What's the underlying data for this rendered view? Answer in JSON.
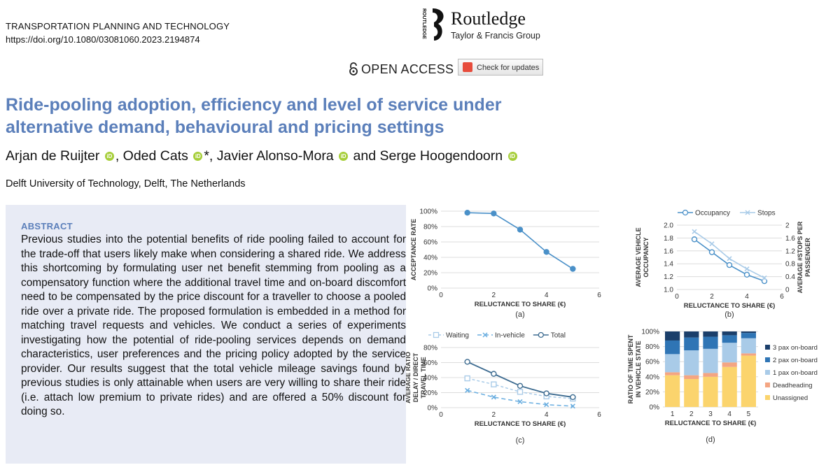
{
  "journal": {
    "name": "TRANSPORTATION PLANNING AND TECHNOLOGY",
    "doi": "https://doi.org/10.1080/03081060.2023.2194874"
  },
  "publisher": {
    "name": "Routledge",
    "group": "Taylor & Francis Group",
    "side_text": "ROUTLEDGE"
  },
  "open_access": "OPEN ACCESS",
  "check_updates": "Check for updates",
  "paper": {
    "title": "Ride-pooling adoption, efficiency and level of service under alternative demand, behavioural and pricing settings",
    "authors": [
      "Arjan de Ruijter",
      "Oded Cats",
      "Javier Alonso-Mora",
      "Serge Hoogendoorn"
    ],
    "orcid_label": "iD",
    "corresponding_mark": "*",
    "sep_comma": ",",
    "sep_and": "and",
    "affiliation": "Delft University of Technology, Delft, The Netherlands"
  },
  "abstract": {
    "heading": "ABSTRACT",
    "text": "Previous studies into the potential benefits of ride pooling failed to account for the trade-off that users likely make when considering a shared ride. We address this shortcoming by formulating user net benefit stemming from pooling as a compensatory function where the additional travel time and on-board discomfort need to be compensated by the price discount for a traveller to choose a pooled ride over a private ride. The proposed formulation is embedded in a method for matching travel requests and vehicles. We conduct a series of experiments investigating how the potential of ride-pooling services depends on demand characteristics, user preferences and the pricing policy adopted by the service provider. Our results suggest that the total vehicle mileage savings found by previous studies is only attainable when users are very willing to share their ride (i.e. attach low premium to private rides) and are offered a 50% discount for doing so."
  },
  "chart_data": [
    {
      "id": "a",
      "type": "line",
      "caption": "(a)",
      "xlabel": "RELUCTANCE TO SHARE (€)",
      "ylabel": "ACCEPTANCE RATE",
      "xlim": [
        0,
        6
      ],
      "ylim": [
        0,
        100
      ],
      "xticks": [
        "0",
        "2",
        "4",
        "6"
      ],
      "yticks": [
        "0%",
        "20%",
        "40%",
        "60%",
        "80%",
        "100%"
      ],
      "series": [
        {
          "name": "Acceptance rate",
          "color": "#4a90c8",
          "x": [
            1,
            2,
            3,
            4,
            5
          ],
          "values": [
            98,
            97,
            76,
            47,
            25
          ]
        }
      ]
    },
    {
      "id": "b",
      "type": "line",
      "caption": "(b)",
      "xlabel": "RELUCTANCE TO SHARE (€)",
      "ylabel": "AVERAGE VEHICLE OCCUPANCY",
      "ylabel_right": "AVERAGE #STOPS PER PASSENGER",
      "xlim": [
        0,
        6
      ],
      "ylim": [
        1.0,
        2.0
      ],
      "ylim_right": [
        0,
        2.0
      ],
      "xticks": [
        "0",
        "2",
        "4",
        "6"
      ],
      "yticks": [
        "1.0",
        "1.2",
        "1.4",
        "1.6",
        "1.8",
        "2.0"
      ],
      "yticks_right": [
        "0",
        "0.4",
        "0.8",
        "1.2",
        "1.6",
        "2"
      ],
      "series": [
        {
          "name": "Occupancy",
          "color": "#4a90c8",
          "axis": "left",
          "x": [
            1,
            2,
            3,
            4,
            5
          ],
          "values": [
            1.78,
            1.58,
            1.38,
            1.23,
            1.13
          ]
        },
        {
          "name": "Stops",
          "color": "#a9cbe8",
          "axis": "right",
          "x": [
            1,
            2,
            3,
            4,
            5
          ],
          "values": [
            1.8,
            1.42,
            0.96,
            0.64,
            0.36
          ]
        }
      ]
    },
    {
      "id": "c",
      "type": "line",
      "caption": "(c)",
      "xlabel": "RELUCTANCE TO SHARE (€)",
      "ylabel": "AVERAGE RATIO DELAY / DIRECT TRAVEL TIME",
      "xlim": [
        0,
        6
      ],
      "ylim": [
        0,
        80
      ],
      "xticks": [
        "0",
        "2",
        "4",
        "6"
      ],
      "yticks": [
        "0%",
        "20%",
        "40%",
        "60%",
        "80%"
      ],
      "series": [
        {
          "name": "Waiting",
          "color": "#a9cbe8",
          "x": [
            1,
            2,
            3,
            4,
            5
          ],
          "values": [
            39,
            31,
            21,
            15,
            12
          ]
        },
        {
          "name": "In-vehicle",
          "color": "#6aaee0",
          "x": [
            1,
            2,
            3,
            4,
            5
          ],
          "values": [
            23,
            14,
            8,
            4,
            2
          ]
        },
        {
          "name": "Total",
          "color": "#3d6b90",
          "x": [
            1,
            2,
            3,
            4,
            5
          ],
          "values": [
            61,
            45,
            29,
            19,
            14
          ]
        }
      ]
    },
    {
      "id": "d",
      "type": "bar",
      "stacked": true,
      "caption": "(d)",
      "xlabel": "RELUCTANCE TO SHARE (€)",
      "ylabel": "RATIO OF TIME SPENT IN VEHICLE STATE",
      "ylim": [
        0,
        100
      ],
      "categories": [
        "1",
        "2",
        "3",
        "4",
        "5"
      ],
      "yticks": [
        "0%",
        "20%",
        "40%",
        "60%",
        "80%",
        "100%"
      ],
      "series": [
        {
          "name": "Unassigned",
          "color": "#fbd46d",
          "values": [
            42,
            37,
            40,
            53,
            68
          ]
        },
        {
          "name": "Deadheading",
          "color": "#f4a582",
          "values": [
            4,
            5,
            5,
            6,
            3
          ]
        },
        {
          "name": "1 pax on-board",
          "color": "#a9cbe8",
          "values": [
            24,
            33,
            32,
            26,
            20
          ]
        },
        {
          "name": "2 pax on-board",
          "color": "#2f75b5",
          "values": [
            18,
            17,
            16,
            10,
            7
          ]
        },
        {
          "name": "3 pax on-board",
          "color": "#1b3f6b",
          "values": [
            12,
            8,
            7,
            5,
            2
          ]
        }
      ]
    }
  ]
}
